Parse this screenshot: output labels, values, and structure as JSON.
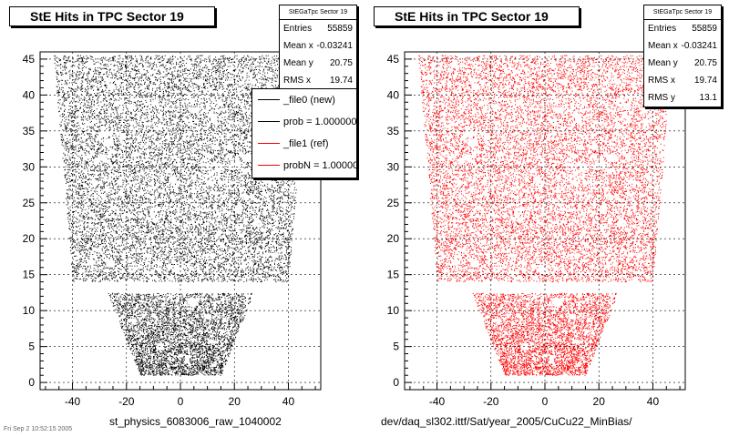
{
  "colors": {
    "new": "#000000",
    "ref": "#ff0000",
    "frame": "#000000"
  },
  "left_panel": {
    "title": "StE Hits in TPC Sector 19",
    "stats": {
      "name": "StEGaTpc Sector 19",
      "rows": [
        {
          "label": "Entries",
          "value": "55859"
        },
        {
          "label": "Mean x",
          "value": "-0.03241"
        },
        {
          "label": "Mean y",
          "value": "20.75"
        },
        {
          "label": "RMS x",
          "value": "19.74"
        }
      ]
    },
    "legend": [
      {
        "label": "_file0 (new)",
        "color": "#000000"
      },
      {
        "label": "prob = 1.000000",
        "color": "#000000"
      },
      {
        "label": "_file1 (ref)",
        "color": "#ff0000"
      },
      {
        "label": "probN = 1.000000",
        "color": "#ff0000"
      }
    ],
    "caption": "st_physics_6083006_raw_1040002"
  },
  "right_panel": {
    "title": "StE Hits in TPC Sector 19",
    "stats": {
      "name": "StEGaTpc Sector 19",
      "rows": [
        {
          "label": "Entries",
          "value": "55859"
        },
        {
          "label": "Mean x",
          "value": "-0.03241"
        },
        {
          "label": "Mean y",
          "value": "20.75"
        },
        {
          "label": "RMS x",
          "value": "19.74"
        },
        {
          "label": "RMS y",
          "value": "13.1"
        }
      ]
    },
    "caption": "dev/daq_sl302.ittf/Sat/year_2005/CuCu22_MinBias/"
  },
  "footer_text": "Fri Sep 2 10:52:15 2005",
  "chart_data": [
    {
      "type": "scatter",
      "title": "StE Hits in TPC Sector 19",
      "xlabel": "",
      "ylabel": "",
      "xlim": [
        -52,
        52
      ],
      "ylim": [
        -1,
        46
      ],
      "xticks": [
        -40,
        -20,
        0,
        20,
        40
      ],
      "yticks": [
        0,
        5,
        10,
        15,
        20,
        25,
        30,
        35,
        40,
        45
      ],
      "grid": true,
      "series": [
        {
          "name": "_file0 (new)",
          "color": "#000000",
          "region": "trapezoid pad-row hit map: |x| <= ~15 at y=1 widening to |x| <= ~47 at y=45, gap between y=12 and y=14",
          "entries": 55859
        }
      ]
    },
    {
      "type": "scatter",
      "title": "StE Hits in TPC Sector 19",
      "xlabel": "",
      "ylabel": "",
      "xlim": [
        -52,
        52
      ],
      "ylim": [
        -1,
        46
      ],
      "xticks": [
        -40,
        -20,
        0,
        20,
        40
      ],
      "yticks": [
        0,
        5,
        10,
        15,
        20,
        25,
        30,
        35,
        40,
        45
      ],
      "grid": true,
      "series": [
        {
          "name": "_file1 (ref)",
          "color": "#ff0000",
          "region": "trapezoid pad-row hit map: |x| <= ~15 at y=1 widening to |x| <= ~47 at y=45, gap between y=12 and y=14",
          "entries": 55859
        }
      ]
    }
  ]
}
